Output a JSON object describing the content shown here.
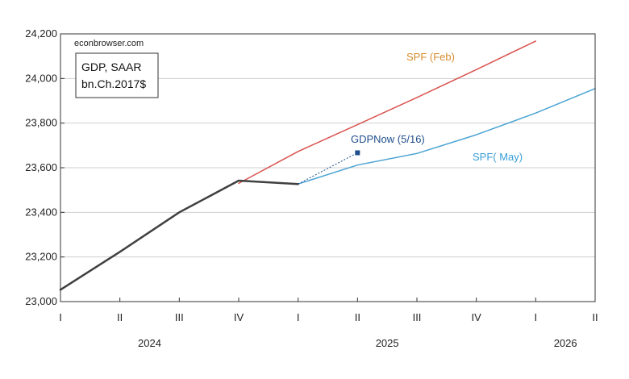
{
  "chart_data": {
    "type": "line",
    "watermark": "econbrowser.com",
    "legend_box": {
      "line1": "GDP, SAAR",
      "line2": "bn.Ch.2017$"
    },
    "x_axis": {
      "quarters": [
        "I",
        "II",
        "III",
        "IV",
        "I",
        "II",
        "III",
        "IV",
        "I",
        "II"
      ],
      "years": [
        {
          "label": "2024",
          "quarter_index": 1.5
        },
        {
          "label": "2025",
          "quarter_index": 5.5
        },
        {
          "label": "2026",
          "quarter_index": 8.5
        }
      ],
      "range": [
        0,
        9
      ]
    },
    "y_axis": {
      "ticks": [
        23000,
        23200,
        23400,
        23600,
        23800,
        24000,
        24200
      ],
      "tick_labels": [
        "23,000",
        "23,200",
        "23,400",
        "23,600",
        "23,800",
        "24,000",
        "24,200"
      ],
      "ylim": [
        23000,
        24200
      ]
    },
    "grid": true,
    "series": [
      {
        "label": "",
        "color": "#404040",
        "width": 2.5,
        "points": [
          [
            0,
            23053
          ],
          [
            1,
            23223
          ],
          [
            2,
            23400
          ],
          [
            3,
            23542
          ],
          [
            4,
            23527
          ]
        ]
      },
      {
        "label": "SPF (Feb)",
        "label_color": "#d98c2e",
        "color": "#d9534f",
        "width": 1.5,
        "points": [
          [
            3,
            23530
          ],
          [
            4,
            23673
          ],
          [
            5,
            23793
          ],
          [
            6,
            23915
          ],
          [
            7,
            24040
          ],
          [
            8,
            24168
          ]
        ]
      },
      {
        "label": "SPF( May)",
        "label_color": "#3a9fd8",
        "color": "#4ba3d3",
        "width": 1.5,
        "points": [
          [
            4,
            23527
          ],
          [
            5,
            23612
          ],
          [
            6,
            23664
          ],
          [
            7,
            23748
          ],
          [
            8,
            23845
          ],
          [
            9,
            23955
          ]
        ]
      }
    ],
    "gdpnow": {
      "label": "GDPNow (5/16)",
      "color": "#1f4e8c",
      "from": [
        4,
        23527
      ],
      "point": [
        5,
        23667
      ]
    }
  }
}
